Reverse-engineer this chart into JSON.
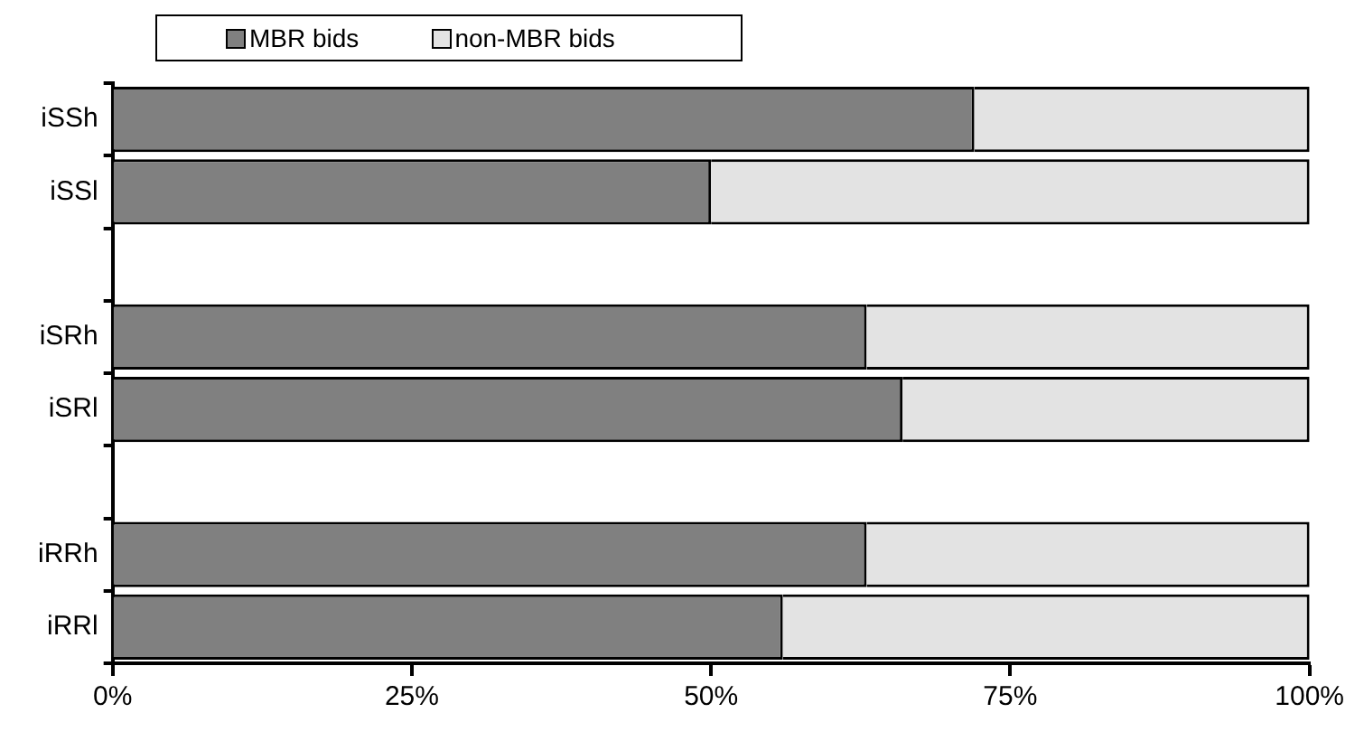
{
  "chart_data": {
    "type": "bar",
    "orientation": "horizontal",
    "stacked": true,
    "categories": [
      "iSSh",
      "iSSl",
      null,
      "iSRh",
      "iSRl",
      null,
      "iRRh",
      "iRRl"
    ],
    "series": [
      {
        "name": "MBR bids",
        "color": "#808080",
        "values": [
          72,
          50,
          null,
          63,
          66,
          null,
          63,
          56
        ]
      },
      {
        "name": "non-MBR bids",
        "color": "#e3e3e3",
        "values": [
          28,
          50,
          null,
          37,
          34,
          null,
          37,
          44
        ]
      }
    ],
    "xlim": [
      0,
      100
    ],
    "xticks": [
      {
        "value": 0,
        "label": "0%"
      },
      {
        "value": 25,
        "label": "25%"
      },
      {
        "value": 50,
        "label": "50%"
      },
      {
        "value": 75,
        "label": "75%"
      },
      {
        "value": 100,
        "label": "100%"
      }
    ],
    "legend": "top left",
    "grid": false
  }
}
